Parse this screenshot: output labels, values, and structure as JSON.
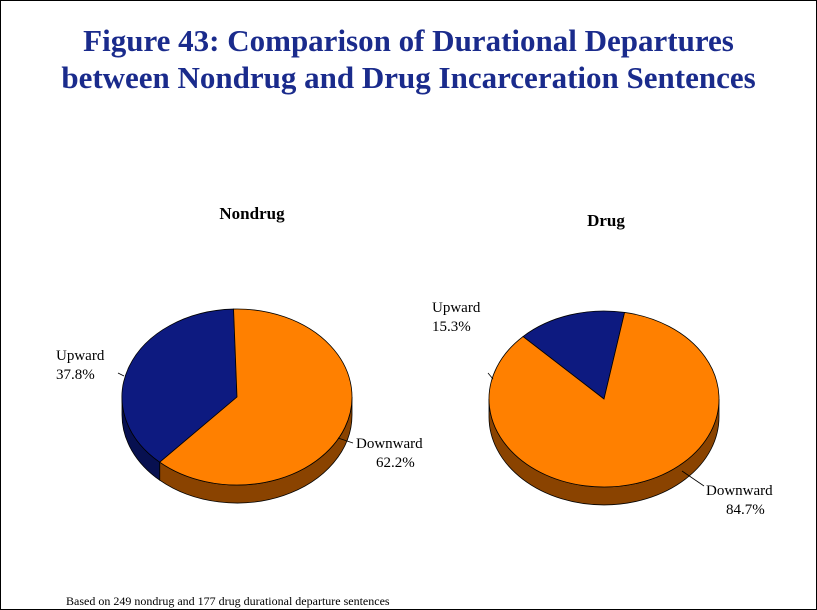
{
  "title_lines": [
    "Figure 43: Comparison of Durational Departures",
    "between Nondrug and Drug Incarceration Sentences"
  ],
  "footnote": "Based on 249 nondrug and 177 drug durational departure sentences",
  "colors": {
    "title": "#1a2b8c",
    "upward": "#0d1a80",
    "upward_side": "#071050",
    "downward": "#ff8000",
    "downward_side": "#8a4300"
  },
  "chart_data": [
    {
      "type": "pie",
      "title": "Nondrug",
      "slices": [
        {
          "label": "Upward",
          "value": 37.8,
          "value_label": "37.8%"
        },
        {
          "label": "Downward",
          "value": 62.2,
          "value_label": "62.2%"
        }
      ]
    },
    {
      "type": "pie",
      "title": "Drug",
      "slices": [
        {
          "label": "Upward",
          "value": 15.3,
          "value_label": "15.3%"
        },
        {
          "label": "Downward",
          "value": 84.7,
          "value_label": "84.7%"
        }
      ]
    }
  ]
}
